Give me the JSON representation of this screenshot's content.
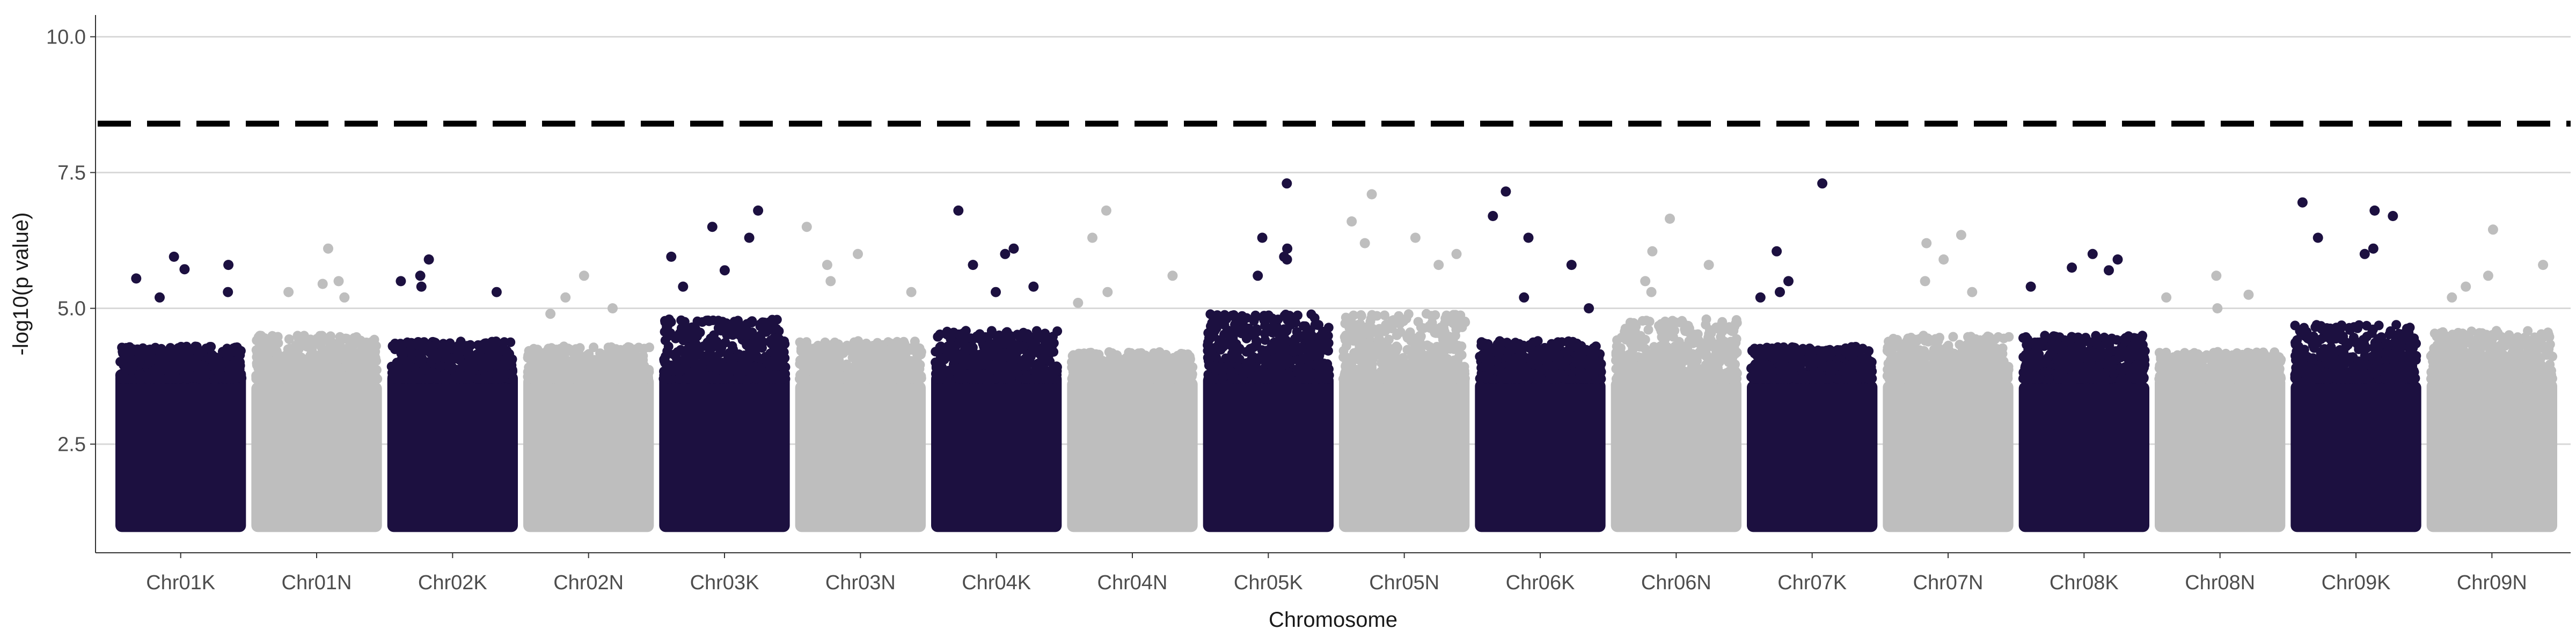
{
  "chart_data": {
    "type": "scatter",
    "title": "",
    "xlabel": "Chromosome",
    "ylabel": "-log10(p value)",
    "ylim": [
      0.5,
      10.4
    ],
    "y_ticks": [
      2.5,
      5.0,
      7.5,
      10.0
    ],
    "y_tick_labels": [
      "2.5",
      "5.0",
      "7.5",
      "10.0"
    ],
    "grid": "horizontal major",
    "threshold": 8.4,
    "colors": {
      "odd": "#1c1040",
      "even": "#bebebe",
      "threshold": "#000000",
      "grid": "#d9d9d9"
    },
    "categories": [
      "Chr01K",
      "Chr01N",
      "Chr02K",
      "Chr02N",
      "Chr03K",
      "Chr03N",
      "Chr04K",
      "Chr04N",
      "Chr05K",
      "Chr05N",
      "Chr06K",
      "Chr06N",
      "Chr07K",
      "Chr07N",
      "Chr08K",
      "Chr08N",
      "Chr09K",
      "Chr09N"
    ],
    "top_peaks": [
      {
        "chromosome": "Chr01K",
        "values": [
          5.95,
          5.8,
          5.72,
          5.55,
          5.3,
          5.2
        ]
      },
      {
        "chromosome": "Chr01N",
        "values": [
          6.1,
          5.5,
          5.45,
          5.3,
          5.2
        ]
      },
      {
        "chromosome": "Chr02K",
        "values": [
          5.9,
          5.6,
          5.5,
          5.4,
          5.3
        ]
      },
      {
        "chromosome": "Chr02N",
        "values": [
          5.6,
          5.2,
          5.0,
          4.9
        ]
      },
      {
        "chromosome": "Chr03K",
        "values": [
          6.8,
          6.5,
          6.3,
          5.95,
          5.7,
          5.4
        ]
      },
      {
        "chromosome": "Chr03N",
        "values": [
          6.5,
          6.0,
          5.8,
          5.5,
          5.3
        ]
      },
      {
        "chromosome": "Chr04K",
        "values": [
          6.8,
          6.1,
          6.0,
          5.8,
          5.4,
          5.3
        ]
      },
      {
        "chromosome": "Chr04N",
        "values": [
          6.8,
          6.3,
          5.6,
          5.3,
          5.1
        ]
      },
      {
        "chromosome": "Chr05K",
        "values": [
          7.3,
          6.3,
          6.1,
          5.95,
          5.9,
          5.6
        ]
      },
      {
        "chromosome": "Chr05N",
        "values": [
          7.1,
          6.6,
          6.3,
          6.2,
          6.0,
          5.8
        ]
      },
      {
        "chromosome": "Chr06K",
        "values": [
          7.15,
          6.7,
          6.3,
          5.8,
          5.2,
          5.0
        ]
      },
      {
        "chromosome": "Chr06N",
        "values": [
          6.65,
          6.05,
          5.8,
          5.5,
          5.3
        ]
      },
      {
        "chromosome": "Chr07K",
        "values": [
          7.3,
          6.05,
          5.5,
          5.3,
          5.2
        ]
      },
      {
        "chromosome": "Chr07N",
        "values": [
          6.35,
          6.2,
          5.9,
          5.5,
          5.3
        ]
      },
      {
        "chromosome": "Chr08K",
        "values": [
          6.0,
          5.9,
          5.75,
          5.7,
          5.4
        ]
      },
      {
        "chromosome": "Chr08N",
        "values": [
          5.6,
          5.25,
          5.2,
          5.0
        ]
      },
      {
        "chromosome": "Chr09K",
        "values": [
          6.95,
          6.8,
          6.7,
          6.3,
          6.1,
          6.0
        ]
      },
      {
        "chromosome": "Chr09N",
        "values": [
          6.45,
          5.8,
          5.6,
          5.4,
          5.2
        ]
      }
    ],
    "typical_max": [
      4.3,
      4.5,
      4.4,
      4.3,
      4.8,
      4.4,
      4.6,
      4.2,
      4.9,
      4.9,
      4.4,
      4.8,
      4.3,
      4.5,
      4.5,
      4.2,
      4.7,
      4.6
    ]
  }
}
